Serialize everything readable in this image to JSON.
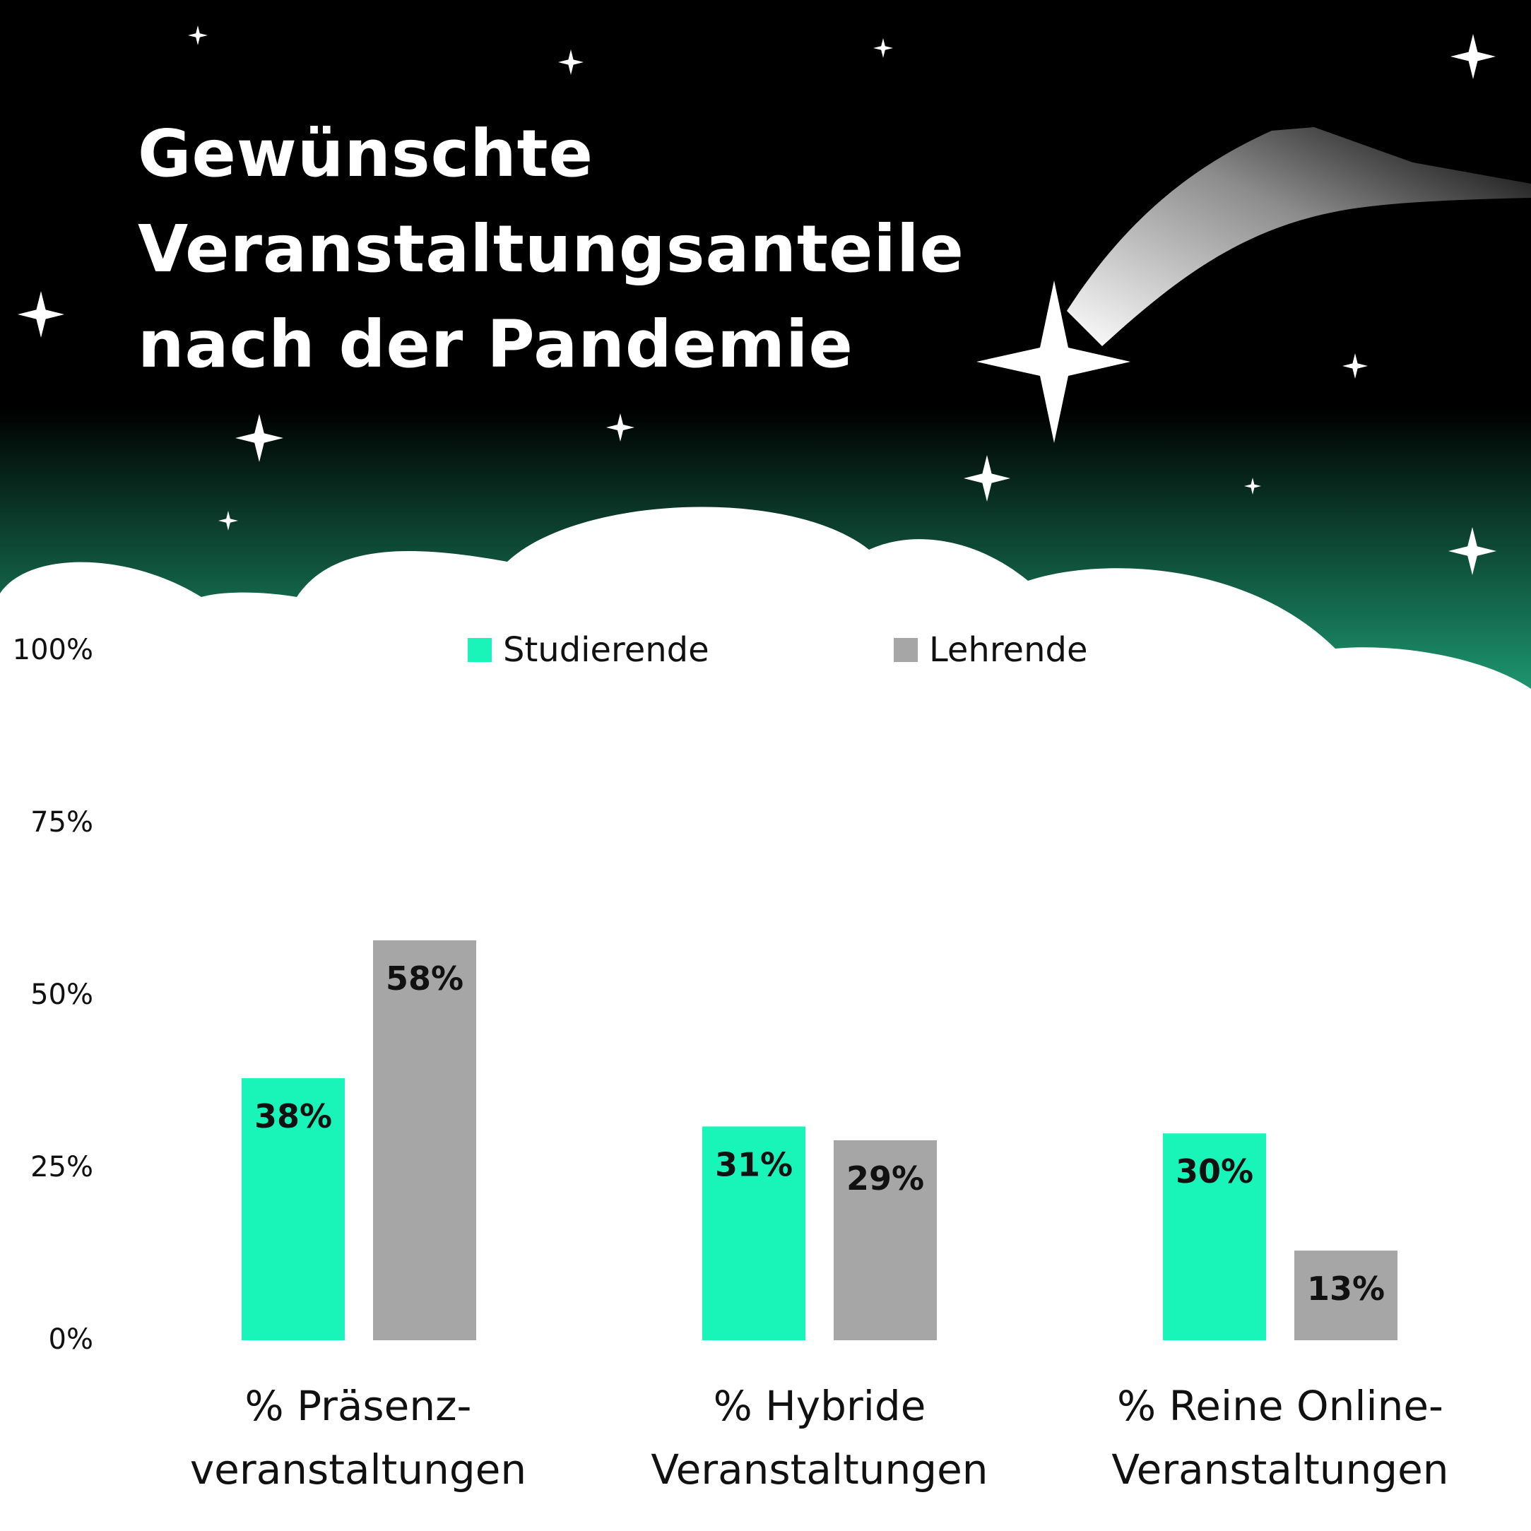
{
  "title_lines": [
    "Gewünschte",
    "Veranstaltungsanteile",
    "nach der Pandemie"
  ],
  "colors": {
    "sky_top": "#000000",
    "sky_bottom": "#1e9e74",
    "studierende": "#19f5b9",
    "lehrende": "#a6a6a6",
    "cloud": "#ffffff",
    "star": "#ffffff"
  },
  "chart_data": {
    "type": "bar",
    "title": "Gewünschte Veranstaltungsanteile nach der Pandemie",
    "categories": [
      [
        "% Präsenz-",
        "veranstaltungen"
      ],
      [
        "% Hybride",
        "Veranstaltungen"
      ],
      [
        "% Reine Online-",
        "Veranstaltungen"
      ]
    ],
    "series": [
      {
        "name": "Studierende",
        "values": [
          38,
          31,
          30
        ],
        "labels": [
          "38%",
          "31%",
          "30%"
        ]
      },
      {
        "name": "Lehrende",
        "values": [
          58,
          29,
          13
        ],
        "labels": [
          "58%",
          "29%",
          "13%"
        ]
      }
    ],
    "y_ticks": [
      "100%",
      "75%",
      "50%",
      "25%",
      "0%"
    ],
    "ylim": [
      0,
      100
    ],
    "grid": false,
    "legend": "top"
  }
}
